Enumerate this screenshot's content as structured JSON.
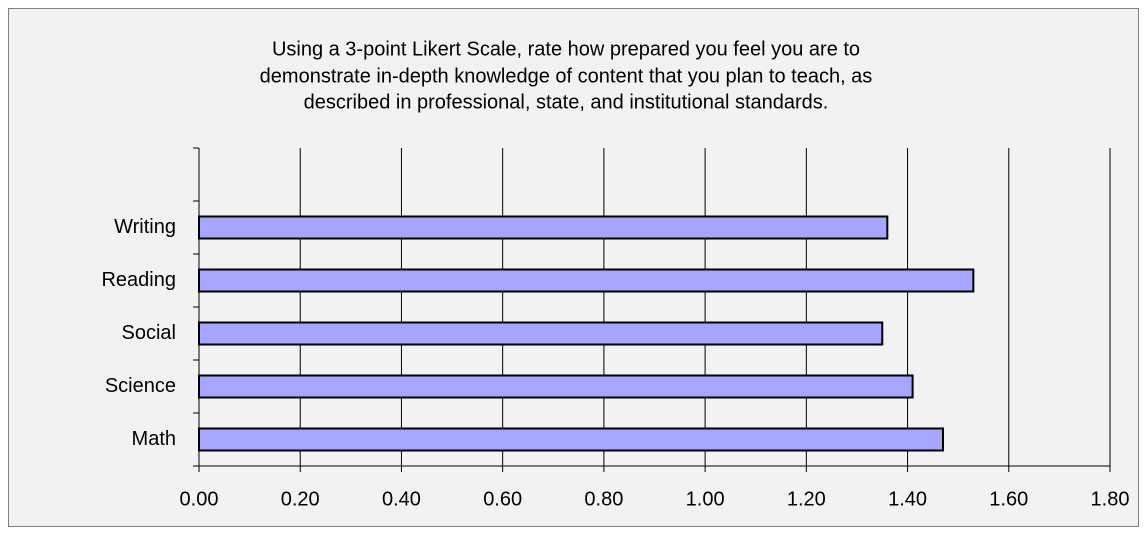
{
  "chart_data": {
    "type": "bar",
    "orientation": "horizontal",
    "title": [
      "Using a 3-point Likert Scale, rate how prepared you feel you are to",
      "demonstrate in-depth knowledge of content that you plan to teach, as",
      "described in professional, state, and institutional standards."
    ],
    "categories": [
      "Math",
      "Science",
      "Social",
      "Reading",
      "Writing",
      null
    ],
    "values": [
      1.47,
      1.41,
      1.35,
      1.53,
      1.36,
      null
    ],
    "color": "#a6a6ff",
    "xlim": [
      0,
      1.8
    ],
    "xticks": [
      {
        "value": 0,
        "label": "0.00"
      },
      {
        "value": 0.2,
        "label": "0.20"
      },
      {
        "value": 0.4,
        "label": "0.40"
      },
      {
        "value": 0.6,
        "label": "0.60"
      },
      {
        "value": 0.8,
        "label": "0.80"
      },
      {
        "value": 1.0,
        "label": "1.00"
      },
      {
        "value": 1.2,
        "label": "1.20"
      },
      {
        "value": 1.4,
        "label": "1.40"
      },
      {
        "value": 1.6,
        "label": "1.60"
      },
      {
        "value": 1.8,
        "label": "1.80"
      }
    ],
    "grid": true
  }
}
